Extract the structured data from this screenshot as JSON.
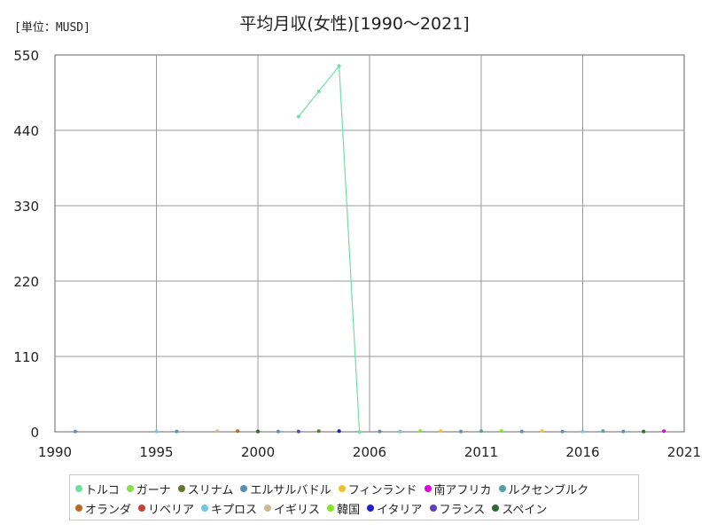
{
  "header": {
    "unit": "[単位：MUSD]",
    "title": "平均月収(女性)[1990～2021]"
  },
  "chart_data": {
    "type": "line",
    "xlim": [
      1990,
      2021
    ],
    "ylim": [
      0,
      550
    ],
    "x_ticks": [
      "1990",
      "1995",
      "2000",
      "2006",
      "2011",
      "2016",
      "2021"
    ],
    "x_tick_values": [
      1990,
      1995,
      2000,
      2005.5,
      2011,
      2016,
      2021
    ],
    "y_ticks": [
      "0",
      "110",
      "220",
      "330",
      "440",
      "550"
    ],
    "y_tick_values": [
      0,
      110,
      220,
      330,
      440,
      550
    ],
    "grid": true,
    "legend_position": "bottom",
    "series": [
      {
        "name": "トルコ",
        "color": "#6fe0a0",
        "connect": true,
        "points": [
          [
            2002,
            460
          ],
          [
            2003,
            497
          ],
          [
            2004,
            534
          ],
          [
            2005,
            0
          ]
        ]
      },
      {
        "name": "ガーナ",
        "color": "#88dd4a",
        "connect": false,
        "points": [
          [
            2019,
            0.5
          ]
        ]
      },
      {
        "name": "スリナム",
        "color": "#5a7a30",
        "connect": false,
        "points": [
          [
            2003,
            1
          ],
          [
            2004,
            1
          ]
        ]
      },
      {
        "name": "エルサルバドル",
        "color": "#5a8fb0",
        "connect": false,
        "points": [
          [
            1991,
            0.5
          ],
          [
            1996,
            0.5
          ],
          [
            2001,
            0.5
          ],
          [
            2006,
            0.5
          ],
          [
            2010,
            0.5
          ],
          [
            2013,
            0.5
          ],
          [
            2015,
            0.5
          ],
          [
            2018,
            0.5
          ]
        ]
      },
      {
        "name": "フィンランド",
        "color": "#f0c030",
        "connect": false,
        "points": [
          [
            2009,
            1
          ],
          [
            2014,
            1
          ]
        ]
      },
      {
        "name": "南アフリカ",
        "color": "#e000e0",
        "connect": false,
        "points": [
          [
            2020,
            1
          ]
        ]
      },
      {
        "name": "ルクセンブルク",
        "color": "#50a0a8",
        "connect": false,
        "points": [
          [
            2011,
            1
          ],
          [
            2017,
            1
          ]
        ]
      },
      {
        "name": "オランダ",
        "color": "#c06818",
        "connect": false,
        "points": [
          [
            1999,
            1
          ]
        ]
      },
      {
        "name": "リベリア",
        "color": "#c84030",
        "connect": false,
        "points": [
          [
            2000,
            0.5
          ]
        ]
      },
      {
        "name": "キプロス",
        "color": "#70c8e8",
        "connect": false,
        "points": [
          [
            1995,
            0.5
          ],
          [
            2007,
            0.5
          ],
          [
            2016,
            0.5
          ]
        ]
      },
      {
        "name": "イギリス",
        "color": "#d0b890",
        "connect": false,
        "points": [
          [
            1998,
            1
          ],
          [
            2012,
            1
          ]
        ]
      },
      {
        "name": "韓国",
        "color": "#80e820",
        "connect": false,
        "points": [
          [
            2008,
            1
          ],
          [
            2012,
            1
          ]
        ]
      },
      {
        "name": "イタリア",
        "color": "#2020d0",
        "connect": false,
        "points": [
          [
            2004,
            1
          ]
        ]
      },
      {
        "name": "フランス",
        "color": "#6040c0",
        "connect": false,
        "points": [
          [
            2002,
            0.5
          ]
        ]
      },
      {
        "name": "スペイン",
        "color": "#306838",
        "connect": false,
        "points": [
          [
            2000,
            0.5
          ],
          [
            2019,
            0.5
          ]
        ]
      }
    ]
  }
}
